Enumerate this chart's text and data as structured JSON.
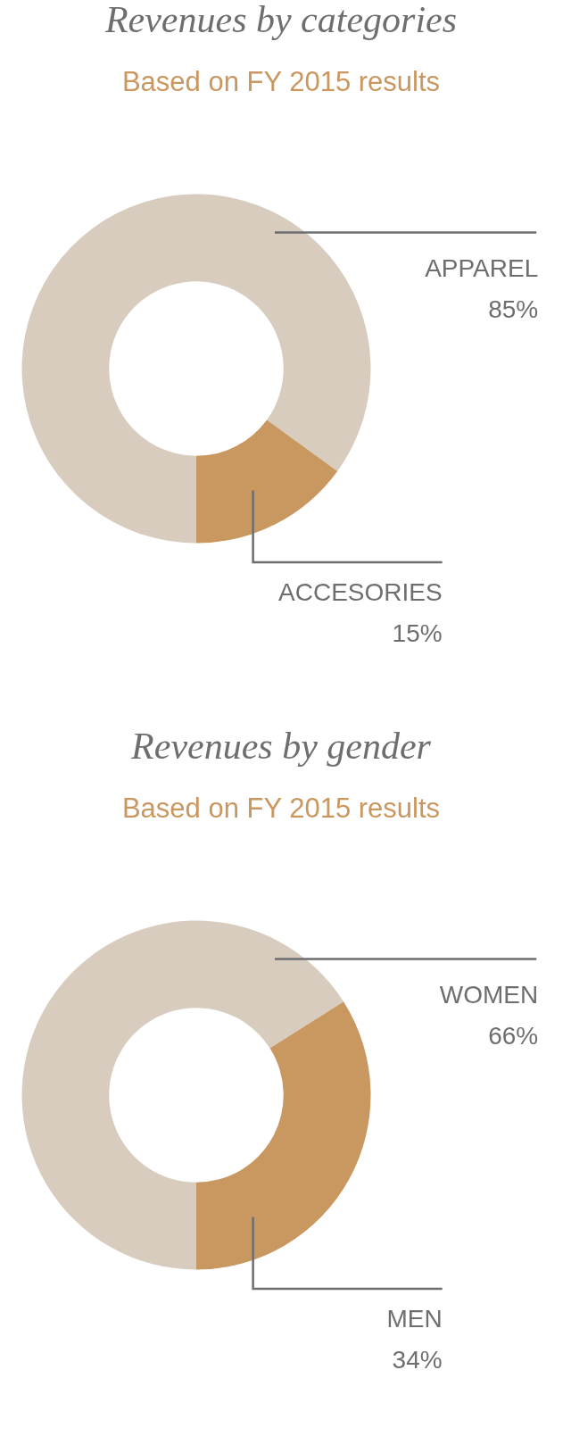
{
  "chart_data": [
    {
      "type": "donut",
      "title": "Revenues by categories",
      "subtitle": "Based on FY 2015 results",
      "categories": [
        "APPAREL",
        "ACCESORIES"
      ],
      "values": [
        85,
        15
      ],
      "colors": [
        "#d7ccbd",
        "#c99760"
      ],
      "value_labels": [
        "85%",
        "15%"
      ]
    },
    {
      "type": "donut",
      "title": "Revenues by gender",
      "subtitle": "Based on FY 2015 results",
      "categories": [
        "WOMEN",
        "MEN"
      ],
      "values": [
        66,
        34
      ],
      "colors": [
        "#d7ccbd",
        "#c99760"
      ],
      "value_labels": [
        "66%",
        "34%"
      ]
    }
  ]
}
